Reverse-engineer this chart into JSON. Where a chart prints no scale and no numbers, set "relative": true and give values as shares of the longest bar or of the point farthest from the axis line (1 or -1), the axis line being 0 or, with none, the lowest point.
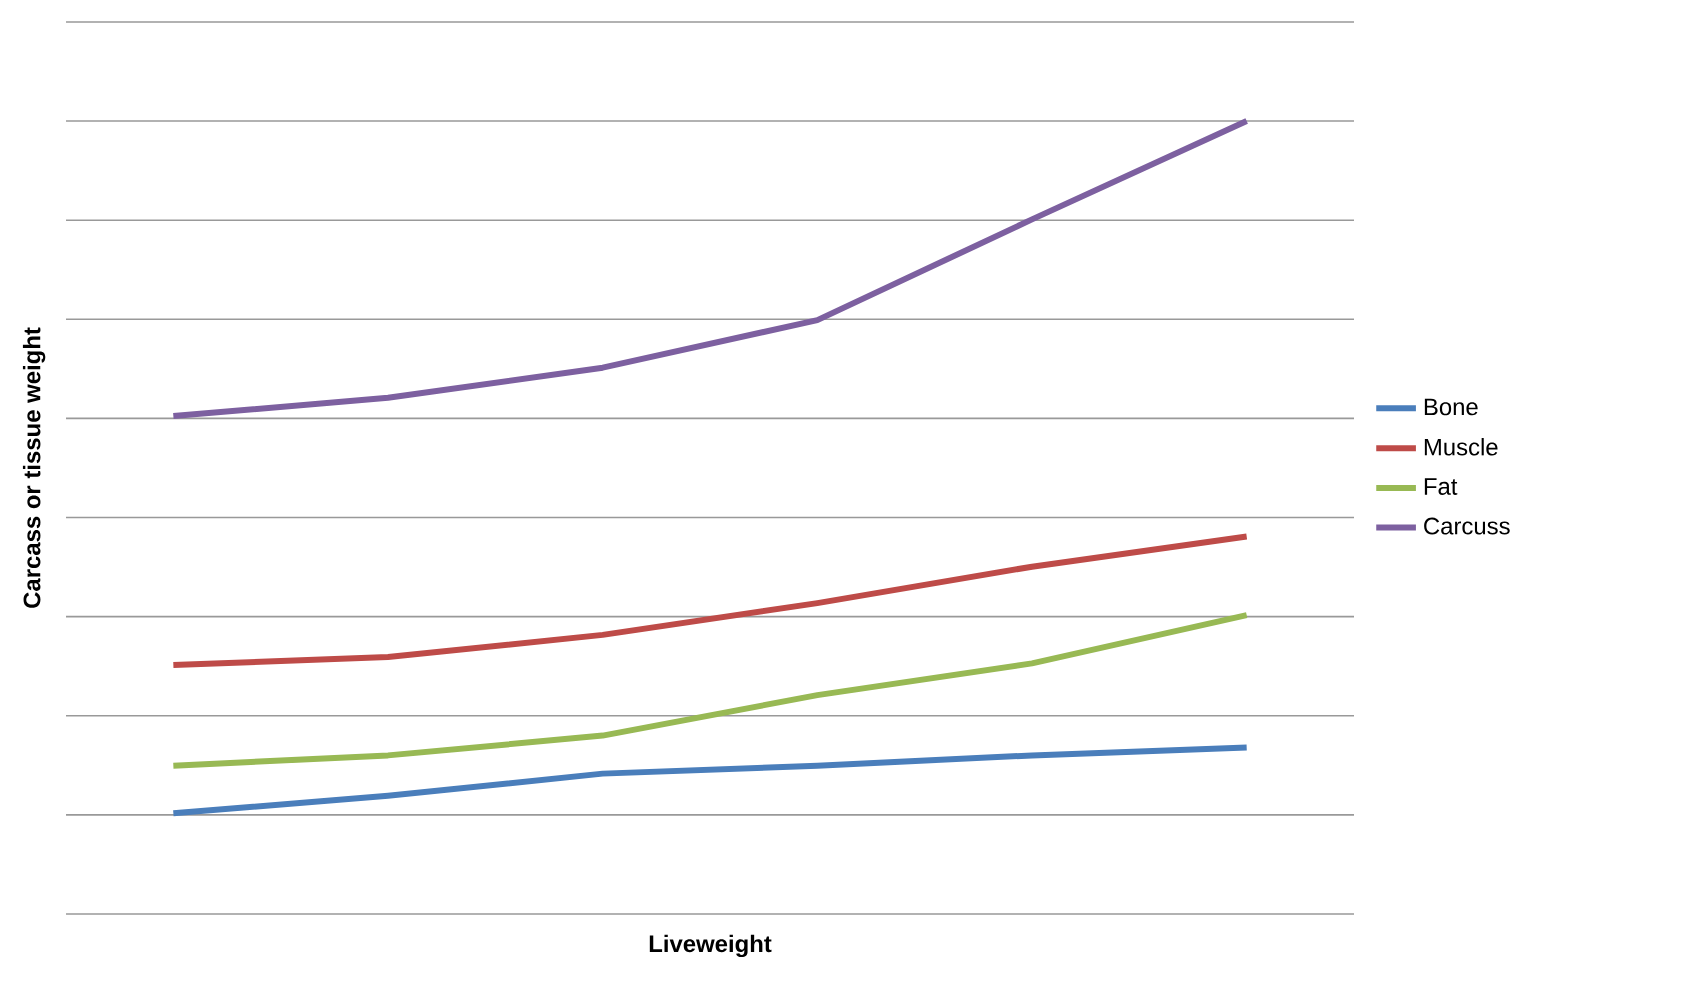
{
  "chart_data": {
    "type": "line",
    "xlabel": "Liveweight",
    "ylabel": "Carcass or tissue weight",
    "relative": true,
    "grid": "y",
    "legend": "right",
    "tick_labels": false,
    "marker": "none",
    "line_style": "solid",
    "categories": [
      null,
      null,
      null,
      null,
      null,
      null
    ],
    "series": [
      {
        "name": "Bone",
        "color": "#4a7ebb",
        "values": [
          0.127,
          0.149,
          0.177,
          0.187,
          0.2,
          0.21
        ]
      },
      {
        "name": "Muscle",
        "color": "#be4b48",
        "values": [
          0.314,
          0.324,
          0.352,
          0.392,
          0.438,
          0.476
        ]
      },
      {
        "name": "Fat",
        "color": "#98b954",
        "values": [
          0.187,
          0.2,
          0.225,
          0.276,
          0.316,
          0.377
        ]
      },
      {
        "name": "Carcuss",
        "color": "#7d60a0",
        "values": [
          0.628,
          0.651,
          0.689,
          0.749,
          0.876,
          1.0
        ]
      }
    ]
  }
}
